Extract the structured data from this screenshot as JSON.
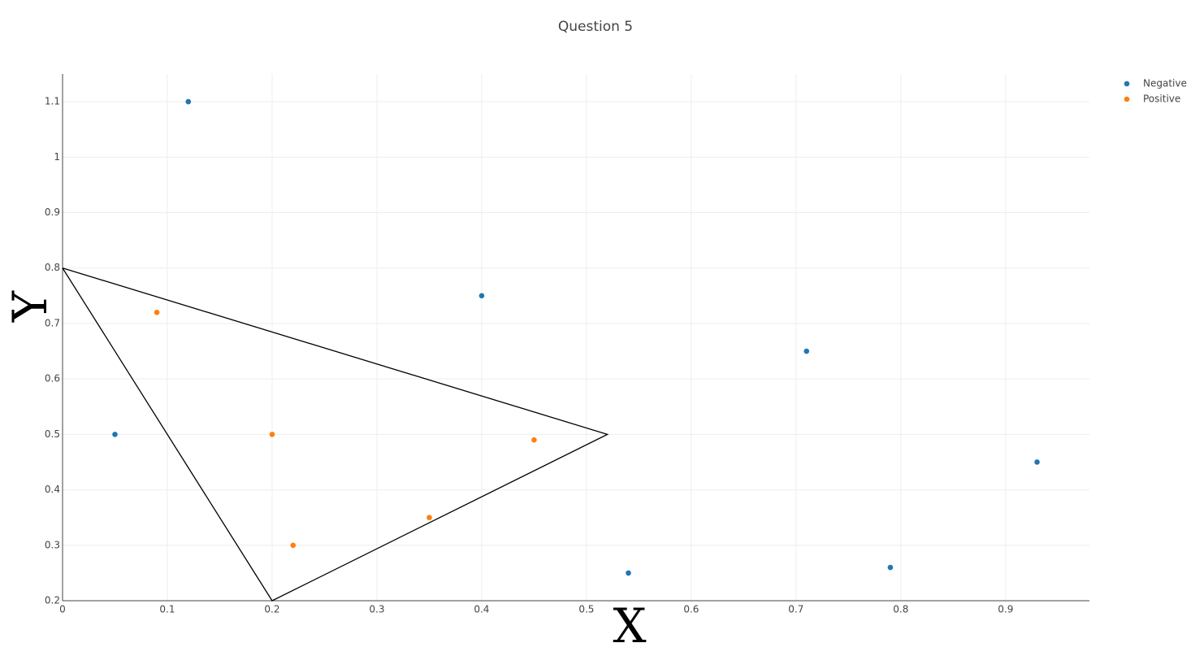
{
  "chart_data": {
    "type": "scatter",
    "title": "Question 5",
    "x_label": "X",
    "y_label": "Y",
    "xlim": [
      0,
      0.98
    ],
    "ylim": [
      0.2,
      1.15
    ],
    "xticks": [
      0,
      0.1,
      0.2,
      0.3,
      0.4,
      0.5,
      0.6,
      0.7,
      0.8,
      0.9
    ],
    "yticks": [
      0.2,
      0.3,
      0.4,
      0.5,
      0.6,
      0.7,
      0.8,
      0.9,
      1,
      1.1
    ],
    "grid": true,
    "legend": "top-right",
    "series": [
      {
        "name": "Negative",
        "color": "#1f77b4",
        "x": [
          0.12,
          0.4,
          0.71,
          0.05,
          0.93,
          0.54,
          0.79
        ],
        "values": [
          1.1,
          0.75,
          0.65,
          0.5,
          0.45,
          0.25,
          0.26
        ]
      },
      {
        "name": "Positive",
        "color": "#ff7f0e",
        "x": [
          0.09,
          0.2,
          0.45,
          0.35,
          0.22
        ],
        "values": [
          0.72,
          0.5,
          0.49,
          0.35,
          0.3
        ]
      }
    ],
    "polygon": {
      "color": "#000000",
      "x": [
        0,
        0.52,
        0.2,
        0
      ],
      "values": [
        0.8,
        0.5,
        0.2,
        0.8
      ]
    }
  }
}
